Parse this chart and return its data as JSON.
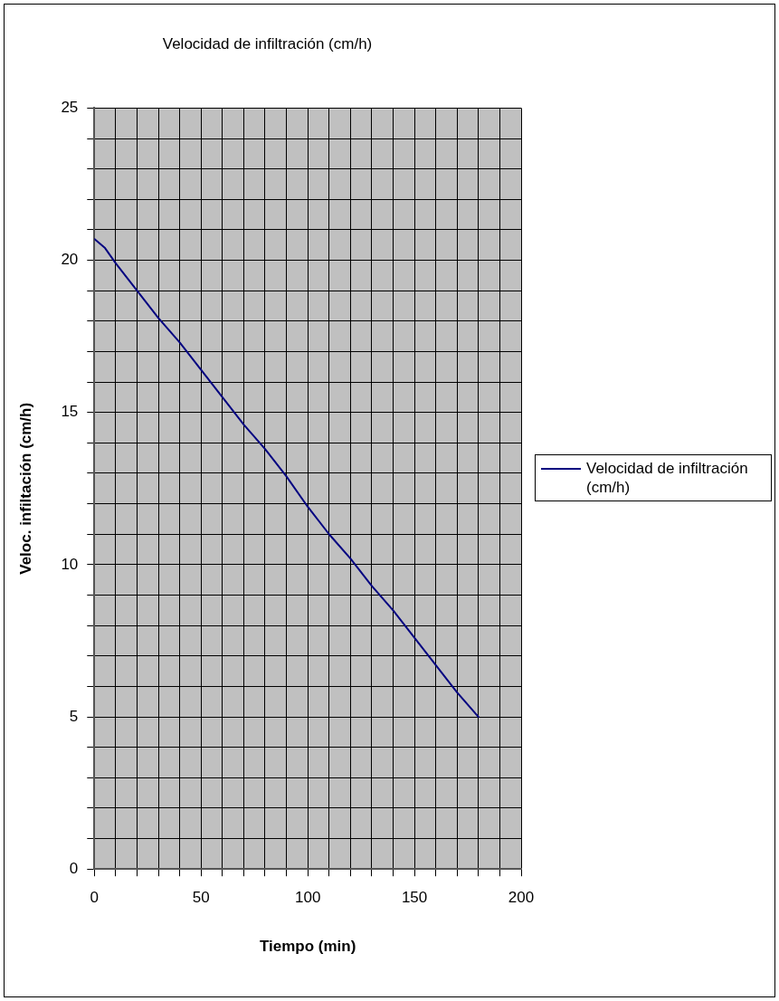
{
  "chart_data": {
    "type": "line",
    "title": "Velocidad de infiltración (cm/h)",
    "xlabel": "Tiempo (min)",
    "ylabel": "Veloc. infiltación (cm/h)",
    "x": [
      0,
      5,
      10,
      20,
      30,
      40,
      50,
      60,
      70,
      80,
      90,
      100,
      110,
      120,
      130,
      140,
      150,
      160,
      170,
      180
    ],
    "series": [
      {
        "name": "Velocidad de infiltración (cm/h)",
        "color": "#000080",
        "values": [
          20.7,
          20.4,
          19.9,
          19.0,
          18.1,
          17.3,
          16.4,
          15.5,
          14.6,
          13.8,
          12.9,
          11.9,
          11.0,
          10.2,
          9.3,
          8.5,
          7.6,
          6.7,
          5.8,
          5.0
        ]
      }
    ],
    "xlim": [
      0,
      200
    ],
    "xticks": [
      0,
      {
        "value": 10,
        "label": null
      },
      {
        "value": 20,
        "label": null
      },
      {
        "value": 30,
        "label": null
      },
      {
        "value": 40,
        "label": null
      },
      50,
      {
        "value": 60,
        "label": null
      },
      {
        "value": 70,
        "label": null
      },
      {
        "value": 80,
        "label": null
      },
      {
        "value": 90,
        "label": null
      },
      100,
      {
        "value": 110,
        "label": null
      },
      {
        "value": 120,
        "label": null
      },
      {
        "value": 130,
        "label": null
      },
      {
        "value": 140,
        "label": null
      },
      150,
      {
        "value": 160,
        "label": null
      },
      {
        "value": 170,
        "label": null
      },
      {
        "value": 180,
        "label": null
      },
      {
        "value": 190,
        "label": null
      },
      200
    ],
    "ylim": [
      0,
      25
    ],
    "yticks": [
      0,
      {
        "value": 1,
        "label": null
      },
      {
        "value": 2,
        "label": null
      },
      {
        "value": 3,
        "label": null
      },
      {
        "value": 4,
        "label": null
      },
      5,
      {
        "value": 6,
        "label": null
      },
      {
        "value": 7,
        "label": null
      },
      {
        "value": 8,
        "label": null
      },
      {
        "value": 9,
        "label": null
      },
      10,
      {
        "value": 11,
        "label": null
      },
      {
        "value": 12,
        "label": null
      },
      {
        "value": 13,
        "label": null
      },
      {
        "value": 14,
        "label": null
      },
      15,
      {
        "value": 16,
        "label": null
      },
      {
        "value": 17,
        "label": null
      },
      {
        "value": 18,
        "label": null
      },
      {
        "value": 19,
        "label": null
      },
      20,
      {
        "value": 21,
        "label": null
      },
      {
        "value": 22,
        "label": null
      },
      {
        "value": 23,
        "label": null
      },
      {
        "value": 24,
        "label": null
      },
      25
    ],
    "grid": true,
    "legend": "right",
    "marker": "none",
    "line_style": "solid"
  }
}
